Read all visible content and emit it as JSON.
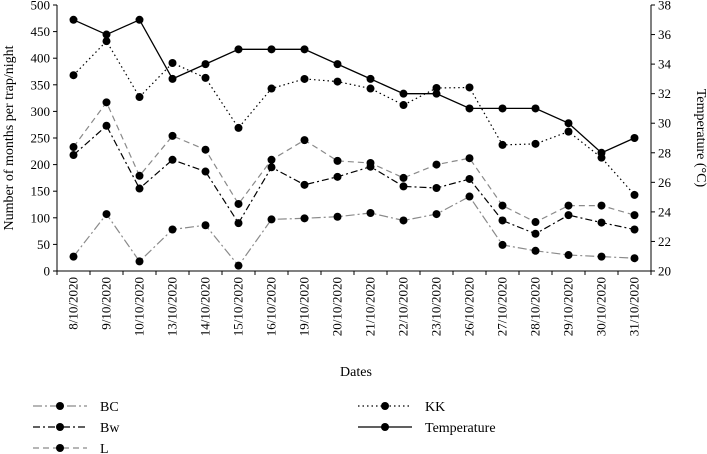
{
  "chart_data": {
    "type": "line",
    "title": "",
    "xlabel": "Dates",
    "ylabel": "Number of months per trap/night",
    "y2label": "Temperature (°C)",
    "ylim": [
      0,
      500
    ],
    "yticks": [
      0,
      50,
      100,
      150,
      200,
      250,
      300,
      350,
      400,
      450,
      500
    ],
    "y2lim": [
      20,
      38
    ],
    "y2ticks": [
      20,
      22,
      24,
      26,
      28,
      30,
      32,
      34,
      36,
      38
    ],
    "grid": false,
    "legend": "bottom",
    "categories": [
      "8/10/2020",
      "9/10/2020",
      "10/10/2020",
      "13/10/2020",
      "14/10/2020",
      "15/10/2020",
      "16/10/2020",
      "19/10/2020",
      "20/10/2020",
      "21/10/2020",
      "22/10/2020",
      "23/10/2020",
      "26/10/2020",
      "27/10/2020",
      "28/10/2020",
      "29/10/2020",
      "30/10/2020",
      "31/10/2020"
    ],
    "series": [
      {
        "name": "BC",
        "axis": "left",
        "dash": "dashdot-long",
        "values": [
          27,
          107,
          18,
          78,
          86,
          10,
          97,
          99,
          102,
          109,
          95,
          107,
          140,
          49,
          38,
          30,
          27,
          24
        ]
      },
      {
        "name": "Bw",
        "axis": "left",
        "dash": "dashdot",
        "values": [
          218,
          273,
          155,
          209,
          187,
          90,
          195,
          162,
          177,
          196,
          159,
          156,
          173,
          95,
          70,
          105,
          91,
          78
        ]
      },
      {
        "name": "L",
        "axis": "left",
        "dash": "dashed",
        "values": [
          233,
          317,
          179,
          254,
          228,
          126,
          209,
          246,
          207,
          203,
          175,
          200,
          212,
          123,
          92,
          123,
          123,
          105
        ]
      },
      {
        "name": "KK",
        "axis": "left",
        "dash": "dotted",
        "values": [
          368,
          432,
          327,
          391,
          363,
          269,
          343,
          361,
          356,
          343,
          312,
          344,
          345,
          237,
          239,
          262,
          213,
          143
        ]
      },
      {
        "name": "Temperature",
        "axis": "right",
        "dash": "solid",
        "values": [
          37,
          36,
          37,
          33,
          34,
          35,
          35,
          35,
          34,
          33,
          32,
          32,
          31,
          31,
          31,
          30,
          28,
          29
        ]
      }
    ]
  }
}
